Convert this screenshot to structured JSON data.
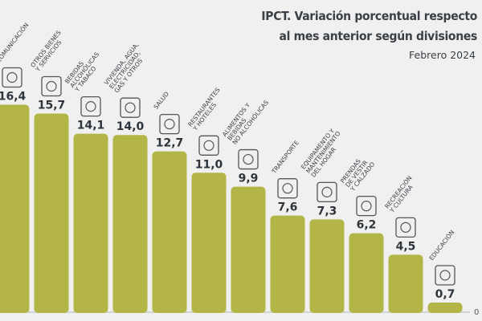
{
  "chart_data": {
    "type": "bar",
    "title_lines": [
      "IPCT. Variación porcentual respecto",
      "al mes anterior según divisiones"
    ],
    "subtitle": "Febrero 2024",
    "categories": [
      [
        "COMUNICACIÓN"
      ],
      [
        "OTROS BIENES",
        "Y SERVICIOS"
      ],
      [
        "BEBIDAS",
        "ALCOHÓLICAS",
        "Y TABACO"
      ],
      [
        "VIVIENDA, AGUA,",
        "ELECTRICIDAD,",
        "GAS Y OTROS"
      ],
      [
        "SALUD"
      ],
      [
        "RESTAURANTES",
        "Y HOTELES"
      ],
      [
        "ALIMENTOS Y",
        "BEBIDAS",
        "NO ALCOHÓLICAS"
      ],
      [
        "TRANSPORTE"
      ],
      [
        "EQUIPAMENTO Y",
        "MANTENIMIENTO",
        "DEL HOGAR"
      ],
      [
        "PRENDAS",
        "DE VESTIR",
        "Y CALZADO"
      ],
      [
        "RECREACIÓN",
        "Y CULTURA"
      ],
      [
        "EDUCACIÓN"
      ]
    ],
    "values": [
      16.4,
      15.7,
      14.1,
      14.0,
      12.7,
      11.0,
      9.9,
      7.6,
      7.3,
      6.2,
      4.5,
      0.7
    ],
    "value_labels": [
      "16,4",
      "15,7",
      "14,1",
      "14,0",
      "12,7",
      "11,0",
      "9,9",
      "7,6",
      "7,3",
      "6,2",
      "4,5",
      "0,7"
    ],
    "icons": [
      "phone-icon",
      "scissors-ribbon-icon",
      "bottle-glass-icon",
      "house-document-icon",
      "hospital-icon",
      "plate-suitcase-icon",
      "food-bowl-icon",
      "bus-icon",
      "microwave-icon",
      "shirt-icon",
      "camera-icon",
      "diploma-icon"
    ],
    "y_zero_label": "0",
    "ylim": [
      0,
      16.4
    ],
    "grid": false,
    "bar_color": "#b3b646"
  }
}
